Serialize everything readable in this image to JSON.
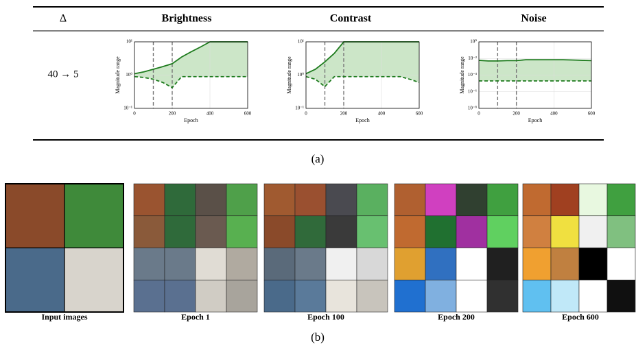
{
  "table": {
    "header": [
      "Δ",
      "Brightness",
      "Contrast",
      "Noise"
    ],
    "row_label": "40 → 5"
  },
  "chart_data": [
    {
      "type": "line",
      "xlabel": "Epoch",
      "ylabel": "Magnitude range",
      "log_y": true,
      "grid": true,
      "fill": "#cce6c8",
      "x": [
        0,
        50,
        100,
        150,
        200,
        250,
        300,
        350,
        400,
        450,
        500,
        550,
        600
      ],
      "series": [
        {
          "color": "#1e7b1e",
          "dash": false,
          "values": [
            1.1,
            1.25,
            1.5,
            1.8,
            2.2,
            3.5,
            5,
            7,
            10,
            10,
            10,
            10,
            10
          ]
        },
        {
          "color": "#1e7b1e",
          "dash": true,
          "values": [
            0.9,
            0.85,
            0.75,
            0.6,
            0.42,
            0.9,
            0.9,
            0.9,
            0.9,
            0.9,
            0.9,
            0.9,
            0.9
          ]
        }
      ],
      "xlim": [
        0,
        600
      ],
      "xticks": [
        0,
        200,
        400,
        600
      ],
      "vlines": [
        100,
        200
      ],
      "ylim": [
        0.1,
        10
      ],
      "yticks": [
        {
          "value": 0.1,
          "label": "10⁻¹"
        },
        {
          "value": 1,
          "label": "10⁰"
        },
        {
          "value": 10,
          "label": "10¹"
        }
      ]
    },
    {
      "type": "line",
      "xlabel": "Epoch",
      "ylabel": "Magnitude range",
      "log_y": true,
      "grid": true,
      "fill": "#cce6c8",
      "x": [
        0,
        50,
        100,
        150,
        200,
        250,
        300,
        350,
        400,
        450,
        500,
        550,
        600
      ],
      "series": [
        {
          "color": "#1e7b1e",
          "dash": false,
          "values": [
            1.1,
            1.5,
            2.5,
            4.5,
            10,
            10,
            10,
            10,
            10,
            10,
            10,
            10,
            10
          ]
        },
        {
          "color": "#1e7b1e",
          "dash": true,
          "values": [
            0.9,
            0.75,
            0.45,
            0.9,
            0.9,
            0.9,
            0.9,
            0.9,
            0.9,
            0.9,
            0.9,
            0.75,
            0.6
          ]
        }
      ],
      "xlim": [
        0,
        600
      ],
      "xticks": [
        0,
        200,
        400,
        600
      ],
      "vlines": [
        100,
        200
      ],
      "ylim": [
        0.1,
        10
      ],
      "yticks": [
        {
          "value": 0.1,
          "label": "10⁻¹"
        },
        {
          "value": 1,
          "label": "10⁰"
        },
        {
          "value": 10,
          "label": "10¹"
        }
      ]
    },
    {
      "type": "line",
      "xlabel": "Epoch",
      "ylabel": "Magnitude range",
      "log_y": true,
      "grid": true,
      "fill": "#cce6c8",
      "x": [
        0,
        50,
        100,
        150,
        200,
        250,
        300,
        350,
        400,
        450,
        500,
        550,
        600
      ],
      "series": [
        {
          "color": "#1e7b1e",
          "dash": false,
          "values": [
            0.006,
            0.005,
            0.005,
            0.0055,
            0.0055,
            0.007,
            0.007,
            0.007,
            0.007,
            0.007,
            0.0065,
            0.006,
            0.0055
          ]
        },
        {
          "color": "#1e7b1e",
          "dash": true,
          "values": [
            2e-05,
            2e-05,
            2e-05,
            2e-05,
            2e-05,
            2e-05,
            2e-05,
            2e-05,
            2e-05,
            2e-05,
            2e-05,
            2e-05,
            2e-05
          ]
        }
      ],
      "xlim": [
        0,
        600
      ],
      "xticks": [
        0,
        200,
        400,
        600
      ],
      "vlines": [
        100,
        200
      ],
      "ylim": [
        1e-08,
        1
      ],
      "yticks": [
        {
          "value": 1e-08,
          "label": "10⁻⁸"
        },
        {
          "value": 1e-06,
          "label": "10⁻⁶"
        },
        {
          "value": 0.0001,
          "label": "10⁻⁴"
        },
        {
          "value": 0.01,
          "label": "10⁻²"
        },
        {
          "value": 1,
          "label": "10⁰"
        }
      ]
    }
  ],
  "caption_a": "(a)",
  "panels": [
    "Input images",
    "Epoch 1",
    "Epoch 100",
    "Epoch 200",
    "Epoch 600"
  ],
  "caption_b": "(b)"
}
